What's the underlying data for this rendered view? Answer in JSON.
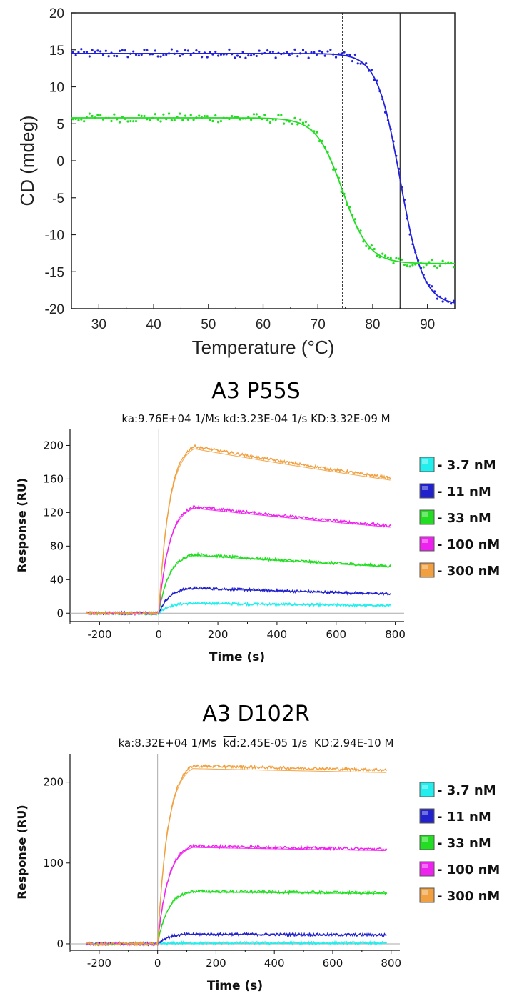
{
  "chart_data": [
    {
      "type": "scatter",
      "xlabel": "Temperature (°C)",
      "ylabel": "CD (mdeg)",
      "xlim": [
        25,
        95
      ],
      "ylim": [
        -20,
        20
      ],
      "xticks": [
        30,
        40,
        50,
        60,
        70,
        80,
        90
      ],
      "yticks": [
        -20,
        -15,
        -10,
        -5,
        0,
        5,
        10,
        15,
        20
      ],
      "vlines": [
        {
          "x": 74.5,
          "style": "dotted"
        },
        {
          "x": 85.0,
          "style": "solid"
        }
      ],
      "series": [
        {
          "color": "#2222dd",
          "top": 14.5,
          "bottom": -19.5,
          "tm": 85.0,
          "slope": 2.1,
          "x_range": [
            25,
            95
          ],
          "noise": 0.6
        },
        {
          "color": "#22dd22",
          "top": 5.8,
          "bottom": -13.9,
          "tm": 74.5,
          "slope": 2.4,
          "x_range": [
            25,
            95
          ],
          "noise": 0.6
        }
      ],
      "grid": false
    },
    {
      "type": "line",
      "title": "A3 P55S",
      "subtitle": "ka:9.76E+04 1/Ms  kd:3.23E-04 1/s  KD:3.32E-09 M",
      "xlabel": "Time (s)",
      "ylabel": "Response (RU)",
      "xlim": [
        -300,
        830
      ],
      "ylim": [
        -10,
        220
      ],
      "xticks": [
        -200,
        0,
        200,
        400,
        600,
        800
      ],
      "yticks": [
        0,
        40,
        80,
        120,
        160,
        200
      ],
      "association_end": 120,
      "series": [
        {
          "name": "- 3.7 nM",
          "color": "#22eeee",
          "plateau": 12,
          "end": 9
        },
        {
          "name": "- 11 nM",
          "color": "#2222cc",
          "plateau": 30,
          "end": 23
        },
        {
          "name": "- 33 nM",
          "color": "#22dd22",
          "plateau": 70,
          "end": 56
        },
        {
          "name": "- 100 nM",
          "color": "#ee22ee",
          "plateau": 127,
          "end": 104
        },
        {
          "name": "- 300 nM",
          "color": "#f0a040",
          "plateau": 199,
          "end": 161
        }
      ],
      "legend": "right"
    },
    {
      "type": "line",
      "title": "A3 D102R",
      "subtitle": {
        "ka": "ka:8.32E+04 1/Ms",
        "kd_symbol": "kd",
        "kd_value": ":2.45E-05 1/s",
        "KD": "KD:2.94E-10 M"
      },
      "xlabel": "Time (s)",
      "ylabel": "Response (RU)",
      "xlim": [
        -300,
        830
      ],
      "ylim": [
        -8,
        235
      ],
      "xticks": [
        -200,
        0,
        200,
        400,
        600,
        800
      ],
      "yticks": [
        0,
        100,
        200
      ],
      "association_end": 120,
      "series": [
        {
          "name": "- 3.7 nM",
          "color": "#22eeee",
          "plateau": 1,
          "end": 1
        },
        {
          "name": "- 11 nM",
          "color": "#2222cc",
          "plateau": 12,
          "end": 11
        },
        {
          "name": "- 33 nM",
          "color": "#22dd22",
          "plateau": 65,
          "end": 63
        },
        {
          "name": "- 100 nM",
          "color": "#ee22ee",
          "plateau": 121,
          "end": 117
        },
        {
          "name": "- 300 nM",
          "color": "#f0a040",
          "plateau": 220,
          "end": 215
        }
      ],
      "legend": "right"
    }
  ]
}
